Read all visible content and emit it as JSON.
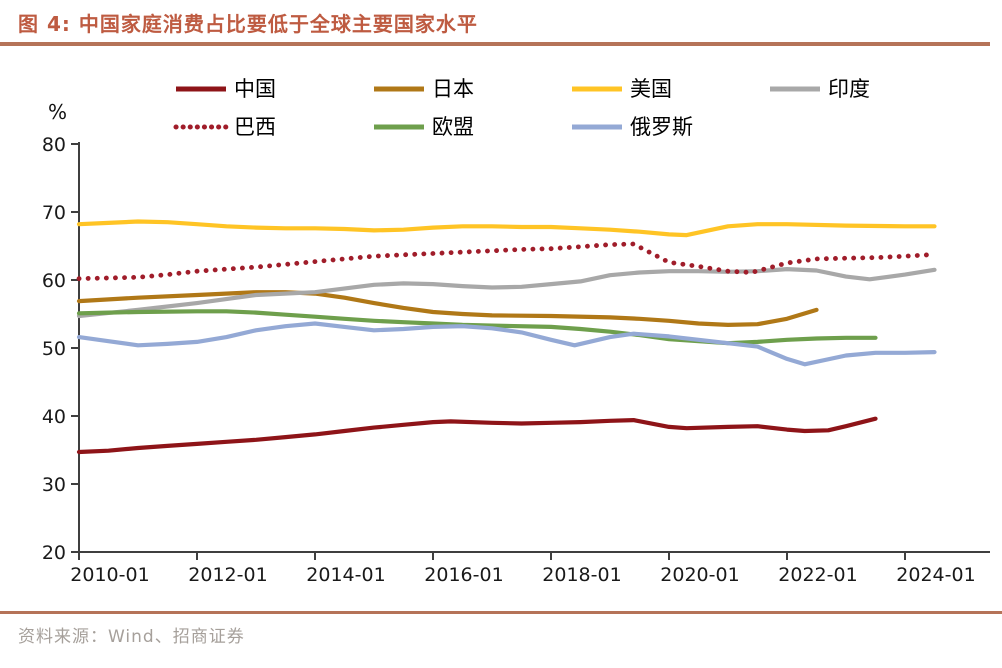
{
  "header": {
    "title": "图 4: 中国家庭消费占比要低于全球主要国家水平"
  },
  "footer": {
    "source_label": "资料来源：Wind、招商证券"
  },
  "colors": {
    "accent_rule": "#B57358",
    "title_text": "#BE5B41",
    "axis": "#3F3F3F",
    "tick_text": "#1A1A1A",
    "source_text": "#A6A09B"
  },
  "chart_data": {
    "type": "line",
    "title": "中国家庭消费占比要低于全球主要国家水平",
    "unit_label": "%",
    "ylabel": "%",
    "xlabel": "",
    "ylim": [
      20,
      80
    ],
    "yticks": [
      20,
      30,
      40,
      50,
      60,
      70,
      80
    ],
    "xlim": [
      2010,
      2025.4
    ],
    "xticks": [
      {
        "pos": 2010,
        "label": "2010-01"
      },
      {
        "pos": 2012,
        "label": "2012-01"
      },
      {
        "pos": 2014,
        "label": "2014-01"
      },
      {
        "pos": 2016,
        "label": "2016-01"
      },
      {
        "pos": 2018,
        "label": "2018-01"
      },
      {
        "pos": 2020,
        "label": "2020-01"
      },
      {
        "pos": 2022,
        "label": "2022-01"
      },
      {
        "pos": 2024,
        "label": "2024-01"
      }
    ],
    "grid": false,
    "legend_position": "top",
    "legend_rows": [
      [
        0,
        1,
        2,
        3
      ],
      [
        4,
        5,
        6
      ]
    ],
    "series": [
      {
        "name": "中国",
        "color": "#8E1418",
        "style": "solid",
        "points": [
          [
            2010,
            34.7
          ],
          [
            2010.5,
            34.9
          ],
          [
            2011,
            35.3
          ],
          [
            2011.5,
            35.6
          ],
          [
            2012,
            35.9
          ],
          [
            2012.5,
            36.2
          ],
          [
            2013,
            36.5
          ],
          [
            2013.5,
            36.9
          ],
          [
            2014,
            37.3
          ],
          [
            2014.5,
            37.8
          ],
          [
            2015,
            38.3
          ],
          [
            2015.5,
            38.7
          ],
          [
            2016,
            39.1
          ],
          [
            2016.3,
            39.2
          ],
          [
            2017,
            39.0
          ],
          [
            2017.5,
            38.9
          ],
          [
            2018,
            39.0
          ],
          [
            2018.5,
            39.1
          ],
          [
            2019,
            39.3
          ],
          [
            2019.4,
            39.4
          ],
          [
            2020,
            38.4
          ],
          [
            2020.3,
            38.2
          ],
          [
            2021,
            38.4
          ],
          [
            2021.5,
            38.5
          ],
          [
            2022,
            38.0
          ],
          [
            2022.3,
            37.8
          ],
          [
            2022.7,
            37.9
          ],
          [
            2023,
            38.5
          ],
          [
            2023.5,
            39.6
          ]
        ]
      },
      {
        "name": "日本",
        "color": "#B07817",
        "style": "solid",
        "points": [
          [
            2010,
            56.9
          ],
          [
            2011,
            57.4
          ],
          [
            2012,
            57.8
          ],
          [
            2013,
            58.2
          ],
          [
            2013.5,
            58.2
          ],
          [
            2014,
            58.0
          ],
          [
            2014.5,
            57.4
          ],
          [
            2015,
            56.6
          ],
          [
            2015.5,
            55.9
          ],
          [
            2016,
            55.3
          ],
          [
            2016.5,
            55.0
          ],
          [
            2017,
            54.8
          ],
          [
            2018,
            54.7
          ],
          [
            2019,
            54.5
          ],
          [
            2019.5,
            54.3
          ],
          [
            2020,
            54.0
          ],
          [
            2020.5,
            53.6
          ],
          [
            2021,
            53.4
          ],
          [
            2021.5,
            53.5
          ],
          [
            2022,
            54.3
          ],
          [
            2022.5,
            55.6
          ]
        ]
      },
      {
        "name": "美国",
        "color": "#FFC425",
        "style": "solid",
        "points": [
          [
            2010,
            68.2
          ],
          [
            2010.5,
            68.4
          ],
          [
            2011,
            68.6
          ],
          [
            2011.5,
            68.5
          ],
          [
            2012,
            68.2
          ],
          [
            2012.5,
            67.9
          ],
          [
            2013,
            67.7
          ],
          [
            2013.5,
            67.6
          ],
          [
            2014,
            67.6
          ],
          [
            2014.5,
            67.5
          ],
          [
            2015,
            67.3
          ],
          [
            2015.5,
            67.4
          ],
          [
            2016,
            67.7
          ],
          [
            2016.5,
            67.9
          ],
          [
            2017,
            67.9
          ],
          [
            2017.5,
            67.8
          ],
          [
            2018,
            67.8
          ],
          [
            2018.5,
            67.6
          ],
          [
            2019,
            67.4
          ],
          [
            2019.5,
            67.1
          ],
          [
            2020,
            66.7
          ],
          [
            2020.3,
            66.6
          ],
          [
            2021,
            67.9
          ],
          [
            2021.5,
            68.2
          ],
          [
            2022,
            68.2
          ],
          [
            2023,
            68.0
          ],
          [
            2024,
            67.9
          ],
          [
            2024.5,
            67.9
          ]
        ]
      },
      {
        "name": "印度",
        "color": "#A8A8A8",
        "style": "solid",
        "points": [
          [
            2010,
            54.7
          ],
          [
            2011,
            55.6
          ],
          [
            2012,
            56.6
          ],
          [
            2013,
            57.8
          ],
          [
            2014,
            58.2
          ],
          [
            2015,
            59.3
          ],
          [
            2015.5,
            59.5
          ],
          [
            2016,
            59.4
          ],
          [
            2016.5,
            59.1
          ],
          [
            2017,
            58.9
          ],
          [
            2017.5,
            59.0
          ],
          [
            2018,
            59.4
          ],
          [
            2018.5,
            59.8
          ],
          [
            2019,
            60.7
          ],
          [
            2019.5,
            61.1
          ],
          [
            2020,
            61.3
          ],
          [
            2020.5,
            61.3
          ],
          [
            2021,
            61.2
          ],
          [
            2021.5,
            61.3
          ],
          [
            2022,
            61.6
          ],
          [
            2022.5,
            61.4
          ],
          [
            2023,
            60.5
          ],
          [
            2023.4,
            60.1
          ],
          [
            2024,
            60.8
          ],
          [
            2024.5,
            61.5
          ]
        ]
      },
      {
        "name": "巴西",
        "color": "#A01D2A",
        "style": "dotted",
        "points": [
          [
            2010,
            60.2
          ],
          [
            2010.5,
            60.3
          ],
          [
            2011,
            60.4
          ],
          [
            2011.5,
            60.8
          ],
          [
            2012,
            61.3
          ],
          [
            2012.5,
            61.6
          ],
          [
            2013,
            61.9
          ],
          [
            2013.5,
            62.3
          ],
          [
            2014,
            62.7
          ],
          [
            2014.5,
            63.1
          ],
          [
            2015,
            63.5
          ],
          [
            2015.5,
            63.7
          ],
          [
            2016,
            63.9
          ],
          [
            2016.5,
            64.1
          ],
          [
            2017,
            64.3
          ],
          [
            2017.5,
            64.5
          ],
          [
            2018,
            64.6
          ],
          [
            2018.5,
            64.9
          ],
          [
            2019,
            65.2
          ],
          [
            2019.4,
            65.3
          ],
          [
            2020,
            62.6
          ],
          [
            2020.5,
            62.0
          ],
          [
            2021,
            61.3
          ],
          [
            2021.4,
            61.1
          ],
          [
            2022,
            62.5
          ],
          [
            2022.5,
            63.1
          ],
          [
            2023,
            63.2
          ],
          [
            2023.5,
            63.3
          ],
          [
            2024,
            63.5
          ],
          [
            2024.4,
            63.7
          ]
        ]
      },
      {
        "name": "欧盟",
        "color": "#6E9F4C",
        "style": "solid",
        "points": [
          [
            2010,
            55.1
          ],
          [
            2010.5,
            55.2
          ],
          [
            2011,
            55.3
          ],
          [
            2012,
            55.4
          ],
          [
            2012.5,
            55.4
          ],
          [
            2013,
            55.2
          ],
          [
            2013.5,
            54.9
          ],
          [
            2014,
            54.6
          ],
          [
            2014.5,
            54.3
          ],
          [
            2015,
            54.0
          ],
          [
            2015.5,
            53.8
          ],
          [
            2016,
            53.6
          ],
          [
            2016.5,
            53.4
          ],
          [
            2017,
            53.3
          ],
          [
            2018,
            53.1
          ],
          [
            2018.5,
            52.8
          ],
          [
            2019,
            52.4
          ],
          [
            2019.5,
            51.9
          ],
          [
            2020,
            51.3
          ],
          [
            2020.5,
            51.0
          ],
          [
            2021,
            50.7
          ],
          [
            2021.5,
            50.9
          ],
          [
            2022,
            51.2
          ],
          [
            2022.5,
            51.4
          ],
          [
            2023,
            51.5
          ],
          [
            2023.5,
            51.5
          ]
        ]
      },
      {
        "name": "俄罗斯",
        "color": "#94A9D5",
        "style": "solid",
        "points": [
          [
            2010,
            51.6
          ],
          [
            2010.5,
            51.0
          ],
          [
            2011,
            50.4
          ],
          [
            2011.5,
            50.6
          ],
          [
            2012,
            50.9
          ],
          [
            2012.5,
            51.6
          ],
          [
            2013,
            52.6
          ],
          [
            2013.5,
            53.2
          ],
          [
            2014,
            53.6
          ],
          [
            2014.5,
            53.1
          ],
          [
            2015,
            52.6
          ],
          [
            2015.5,
            52.8
          ],
          [
            2016,
            53.1
          ],
          [
            2016.5,
            53.2
          ],
          [
            2017,
            52.9
          ],
          [
            2017.5,
            52.3
          ],
          [
            2018,
            51.2
          ],
          [
            2018.4,
            50.4
          ],
          [
            2019,
            51.6
          ],
          [
            2019.4,
            52.1
          ],
          [
            2020,
            51.7
          ],
          [
            2020.5,
            51.2
          ],
          [
            2021,
            50.7
          ],
          [
            2021.5,
            50.2
          ],
          [
            2022,
            48.4
          ],
          [
            2022.3,
            47.6
          ],
          [
            2023,
            48.9
          ],
          [
            2023.5,
            49.3
          ],
          [
            2024,
            49.3
          ],
          [
            2024.5,
            49.4
          ]
        ]
      }
    ]
  }
}
